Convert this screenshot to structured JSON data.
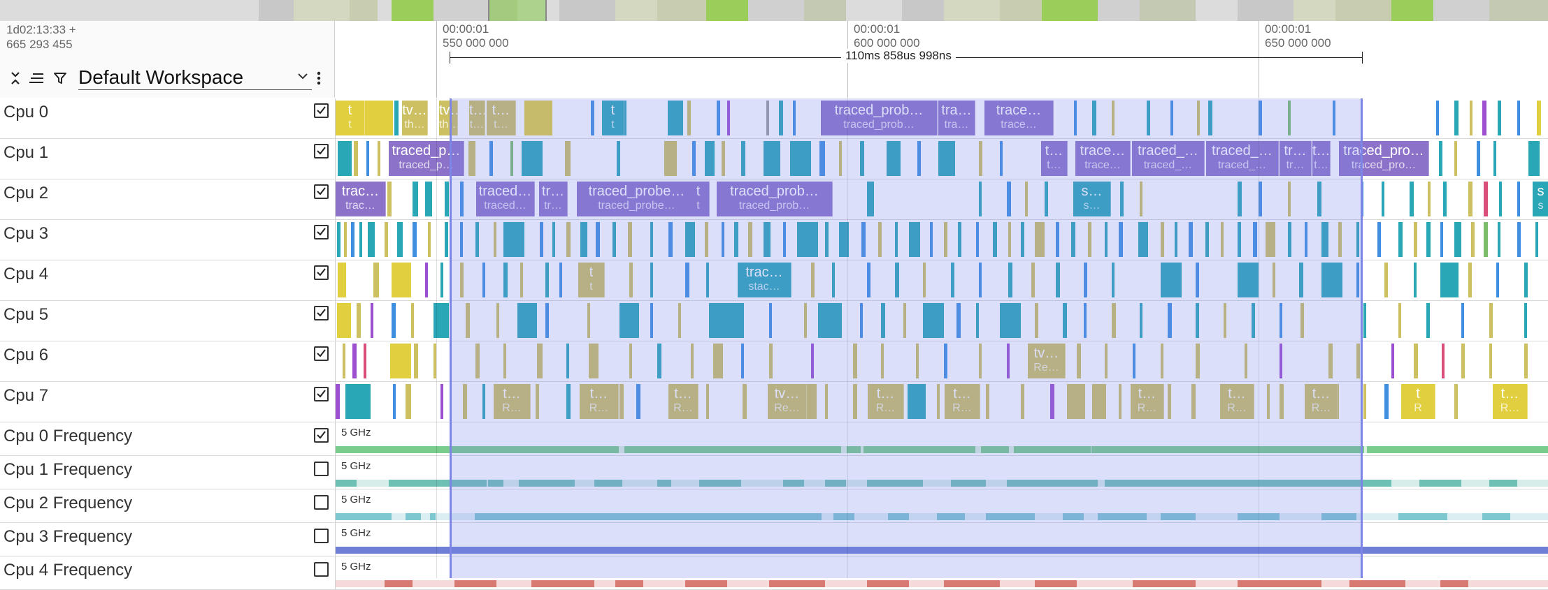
{
  "overview": {
    "colors": [
      "#c8c8c8",
      "#d4d8c0",
      "#c8cdb0",
      "#9acd5a",
      "#d0d0d0",
      "#c4c9b4",
      "#dcdcdc"
    ]
  },
  "header": {
    "timestamp_line1": "1d02:13:33 +",
    "timestamp_line2": "665 293 455",
    "workspace": {
      "selected": "Default Workspace"
    },
    "icons": [
      "collapse-all-icon",
      "sort-lines-icon",
      "filter-icon",
      "chevron-down-icon",
      "more-vert-icon"
    ]
  },
  "timeaxis": {
    "ticks": [
      {
        "line1": "00:00:01",
        "line2": "550 000 000"
      },
      {
        "line1": "00:00:01",
        "line2": "600 000 000"
      },
      {
        "line1": "00:00:01",
        "line2": "650 000 000"
      }
    ],
    "measure_label": "110ms 858us 998ns"
  },
  "palette": {
    "yellow": "#e2cf3f",
    "olive": "#cdc062",
    "purple": "#8c73c9",
    "teal": "#2aa7b6",
    "blue": "#3f8fe0",
    "green": "#7cbd6b",
    "violet": "#9c4fcf",
    "pink": "#d94f7a",
    "grey": "#9e9e9e",
    "freq_green": "#79cc8c",
    "freq_teal": "#6fc0b4",
    "freq_cyan": "#7ec6d0",
    "freq_blue": "#6f7fd6",
    "freq_red": "#d87a72",
    "selection_border": "#7d86e6"
  },
  "tracks": [
    {
      "name": "Cpu 0",
      "checked": true,
      "type": "cpu",
      "slices": [
        {
          "title": "t",
          "sub": "t"
        },
        {
          "title": "tv…",
          "sub": "th…"
        },
        {
          "title": "tv…",
          "sub": "th…"
        },
        {
          "title": "t…",
          "sub": "t…"
        },
        {
          "title": "t…",
          "sub": "t…"
        },
        {
          "title": "t",
          "sub": "t"
        },
        {
          "title": "traced_prob…",
          "sub": "traced_prob…"
        },
        {
          "title": "tra…",
          "sub": "tra…"
        },
        {
          "title": "trace…",
          "sub": "trace…"
        }
      ]
    },
    {
      "name": "Cpu 1",
      "checked": true,
      "type": "cpu",
      "slices": [
        {
          "title": "traced_p…",
          "sub": "traced_p…"
        },
        {
          "title": "t…",
          "sub": "t…"
        },
        {
          "title": "trace…",
          "sub": "trace…"
        },
        {
          "title": "traced_…",
          "sub": "traced_…"
        },
        {
          "title": "traced_…",
          "sub": "traced_…"
        },
        {
          "title": "tr…",
          "sub": "tr…"
        },
        {
          "title": "t…",
          "sub": "t…"
        },
        {
          "title": "traced_pro…",
          "sub": "traced_pro…"
        }
      ]
    },
    {
      "name": "Cpu 2",
      "checked": true,
      "type": "cpu",
      "slices": [
        {
          "title": "trac…",
          "sub": "trac…"
        },
        {
          "title": "traced…",
          "sub": "traced…"
        },
        {
          "title": "tr…",
          "sub": "tr…"
        },
        {
          "title": "traced_probe…",
          "sub": "traced_probe…"
        },
        {
          "title": "t",
          "sub": "t"
        },
        {
          "title": "traced_prob…",
          "sub": "traced_prob…"
        },
        {
          "title": "s…",
          "sub": "s…"
        },
        {
          "title": "s",
          "sub": "s"
        }
      ]
    },
    {
      "name": "Cpu 3",
      "checked": true,
      "type": "cpu",
      "slices": []
    },
    {
      "name": "Cpu 4",
      "checked": true,
      "type": "cpu",
      "slices": [
        {
          "title": "t",
          "sub": "t"
        },
        {
          "title": "trac…",
          "sub": "stac…"
        }
      ]
    },
    {
      "name": "Cpu 5",
      "checked": true,
      "type": "cpu",
      "slices": []
    },
    {
      "name": "Cpu 6",
      "checked": true,
      "type": "cpu",
      "slices": [
        {
          "title": "tv…",
          "sub": "Re…"
        }
      ]
    },
    {
      "name": "Cpu 7",
      "checked": true,
      "type": "cpu",
      "slices": [
        {
          "title": "t…",
          "sub": "R…"
        },
        {
          "title": "t…",
          "sub": "R…"
        },
        {
          "title": "t…",
          "sub": "R…"
        },
        {
          "title": "tv…",
          "sub": "Re…"
        },
        {
          "title": "t…",
          "sub": "R…"
        },
        {
          "title": "t…",
          "sub": "R…"
        },
        {
          "title": "t…",
          "sub": "R…"
        },
        {
          "title": "t…",
          "sub": "R…"
        },
        {
          "title": "t…",
          "sub": "R…"
        },
        {
          "title": "t",
          "sub": "R"
        },
        {
          "title": "t…",
          "sub": "R…"
        }
      ]
    },
    {
      "name": "Cpu 0 Frequency",
      "checked": true,
      "type": "freq",
      "scale": "5 GHz"
    },
    {
      "name": "Cpu 1 Frequency",
      "checked": false,
      "type": "freq",
      "scale": "5 GHz"
    },
    {
      "name": "Cpu 2 Frequency",
      "checked": false,
      "type": "freq",
      "scale": "5 GHz"
    },
    {
      "name": "Cpu 3 Frequency",
      "checked": false,
      "type": "freq",
      "scale": "5 GHz"
    },
    {
      "name": "Cpu 4 Frequency",
      "checked": false,
      "type": "freq",
      "scale": "5 GHz"
    }
  ]
}
